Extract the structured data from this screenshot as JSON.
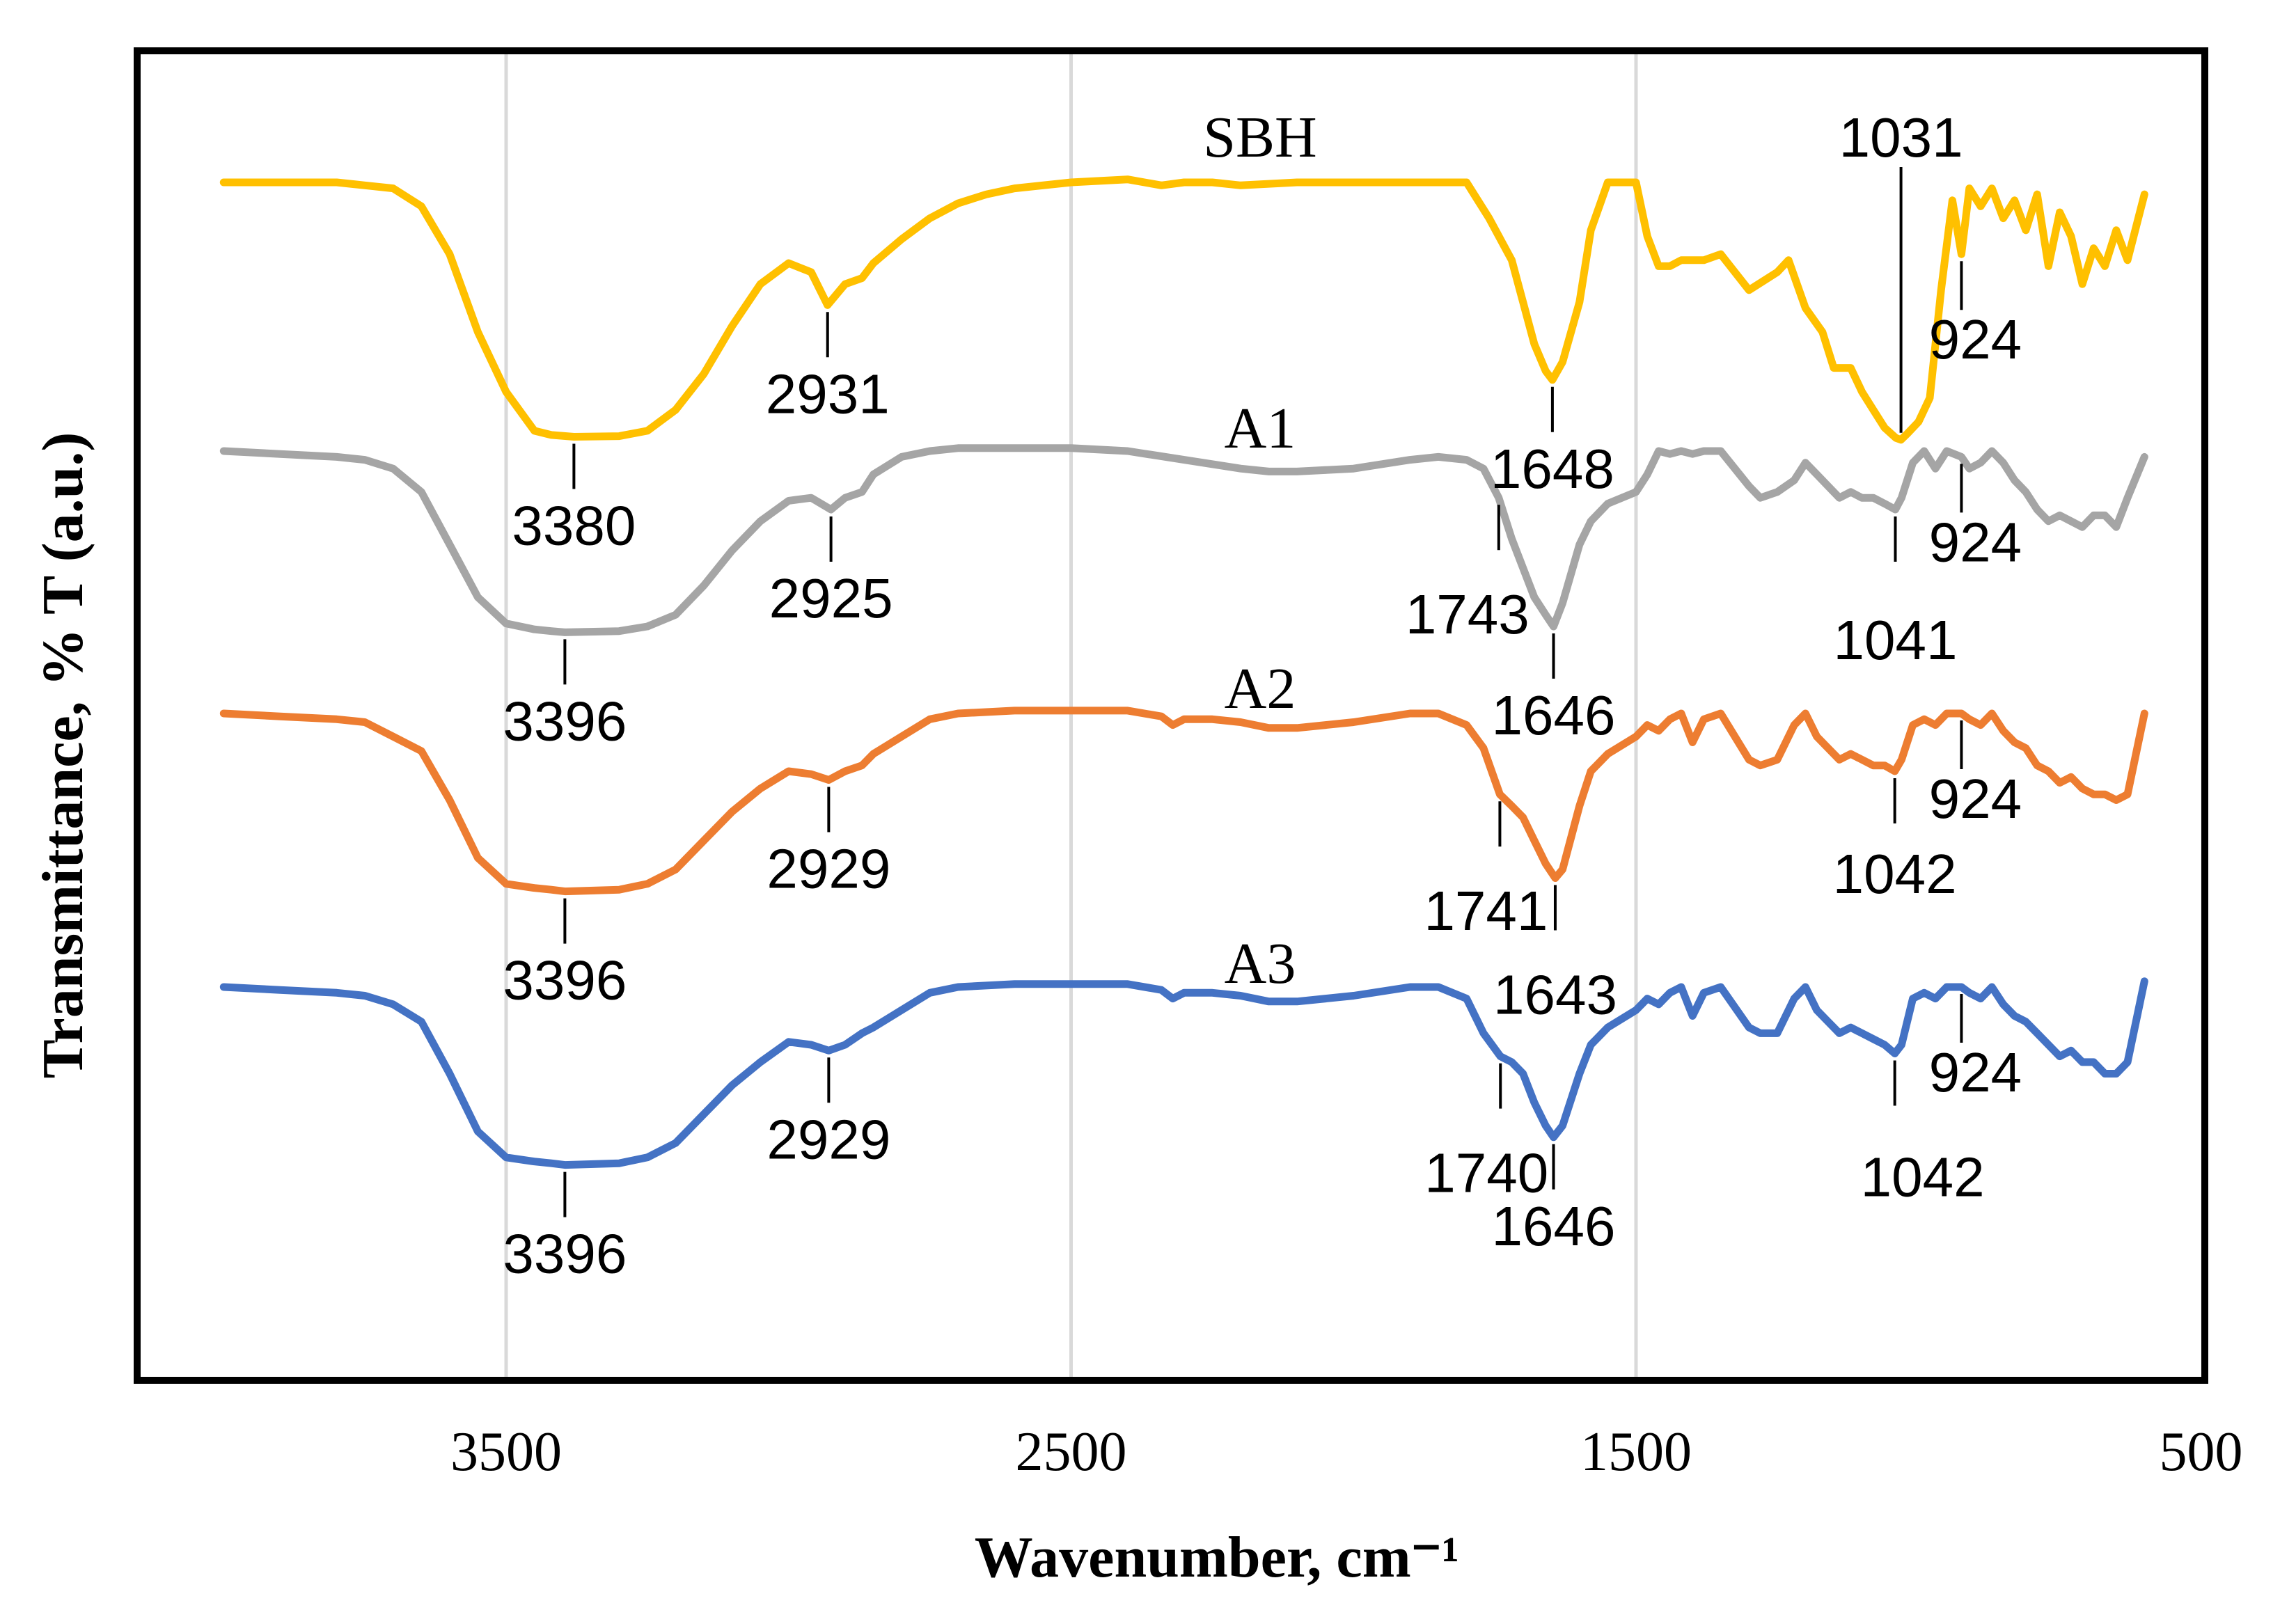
{
  "chart_data": {
    "type": "line",
    "xlabel": "Wavenumber, cm⁻¹",
    "ylabel": "Transmittance, % T (a.u.)",
    "xlim": [
      4150,
      500
    ],
    "x_direction": "reversed",
    "xticks": [
      3500,
      2500,
      1500,
      500
    ],
    "xtick_labels": [
      "3500",
      "2500",
      "1500",
      "500"
    ],
    "grid": "vertical",
    "legend": "none; series labels placed above each trace",
    "y_units": "arbitrary units, traces vertically offset",
    "series": [
      {
        "name": "SBH",
        "color": "#FFC000",
        "offset": 0,
        "x": [
          4000,
          3900,
          3800,
          3750,
          3700,
          3650,
          3600,
          3550,
          3500,
          3450,
          3420,
          3380,
          3300,
          3250,
          3200,
          3150,
          3100,
          3050,
          3000,
          2960,
          2931,
          2900,
          2870,
          2850,
          2800,
          2750,
          2700,
          2650,
          2600,
          2500,
          2400,
          2340,
          2300,
          2250,
          2200,
          2100,
          2000,
          1900,
          1800,
          1780,
          1760,
          1720,
          1700,
          1680,
          1660,
          1648,
          1630,
          1600,
          1580,
          1550,
          1500,
          1480,
          1460,
          1440,
          1420,
          1400,
          1380,
          1350,
          1300,
          1250,
          1230,
          1200,
          1170,
          1150,
          1120,
          1100,
          1080,
          1060,
          1040,
          1031,
          1020,
          1000,
          980,
          960,
          940,
          924,
          910,
          890,
          870,
          850,
          830,
          810,
          790,
          770,
          750,
          730,
          710,
          690,
          670,
          650,
          630,
          600
        ],
        "y": [
          88,
          88,
          88,
          87.5,
          87,
          84,
          76,
          63,
          53,
          46.5,
          45.8,
          45.5,
          45.6,
          46.5,
          50,
          56,
          64,
          71,
          74.5,
          73,
          67.5,
          71,
          72,
          74.5,
          78.5,
          82,
          84.5,
          86,
          87,
          88,
          88.5,
          87.5,
          88,
          88,
          87.5,
          88,
          88,
          88,
          88,
          85,
          82,
          75,
          68,
          61,
          56.5,
          55,
          58,
          68,
          80,
          88,
          88,
          79,
          74,
          74,
          75,
          75,
          75,
          76,
          70,
          73,
          75,
          67,
          63,
          57,
          57,
          53,
          50,
          47,
          45.3,
          45,
          46,
          48,
          52,
          70,
          85,
          76,
          87,
          84,
          87,
          82,
          85,
          80,
          86,
          74,
          83,
          79,
          71,
          77,
          74,
          80,
          75,
          86
        ]
      },
      {
        "name": "A1",
        "color": "#A5A5A5",
        "offset": 0,
        "x": [
          4000,
          3900,
          3800,
          3750,
          3700,
          3650,
          3600,
          3550,
          3500,
          3450,
          3420,
          3396,
          3300,
          3250,
          3200,
          3150,
          3100,
          3050,
          3000,
          2960,
          2925,
          2900,
          2870,
          2850,
          2800,
          2750,
          2700,
          2600,
          2500,
          2400,
          2300,
          2200,
          2150,
          2100,
          2000,
          1900,
          1850,
          1800,
          1770,
          1743,
          1720,
          1700,
          1680,
          1660,
          1646,
          1630,
          1600,
          1580,
          1550,
          1500,
          1480,
          1460,
          1440,
          1420,
          1400,
          1380,
          1350,
          1300,
          1280,
          1250,
          1220,
          1200,
          1180,
          1160,
          1140,
          1120,
          1100,
          1080,
          1060,
          1041,
          1030,
          1010,
          990,
          970,
          950,
          924,
          910,
          890,
          870,
          850,
          830,
          810,
          790,
          770,
          750,
          730,
          710,
          690,
          670,
          650,
          630,
          600
        ],
        "y": [
          88,
          87.5,
          87,
          86.5,
          85,
          81,
          72,
          63,
          58.5,
          57.5,
          57.2,
          57,
          57.2,
          58,
          60,
          65,
          71,
          76,
          79.5,
          80,
          78,
          80,
          81,
          84,
          87,
          88,
          88.5,
          88.5,
          88.5,
          88,
          86.5,
          85,
          84.5,
          84.5,
          85,
          86.5,
          87,
          86.5,
          85,
          80,
          73,
          68,
          63,
          60,
          58,
          62,
          72,
          76,
          79,
          81,
          84,
          88,
          87.5,
          88,
          87.5,
          88,
          88,
          82,
          80,
          81,
          83,
          86,
          84,
          82,
          80,
          81,
          80,
          80,
          79,
          78,
          80,
          86,
          88,
          85,
          88,
          87,
          85,
          86,
          88,
          86,
          83,
          81,
          78,
          76,
          77,
          76,
          75,
          77,
          77,
          75,
          80,
          87
        ]
      },
      {
        "name": "A2",
        "color": "#ED7D31",
        "offset": 0,
        "x": [
          4000,
          3900,
          3800,
          3750,
          3700,
          3650,
          3600,
          3550,
          3500,
          3450,
          3420,
          3396,
          3300,
          3250,
          3200,
          3150,
          3100,
          3050,
          3000,
          2960,
          2929,
          2900,
          2870,
          2850,
          2800,
          2750,
          2700,
          2600,
          2500,
          2400,
          2340,
          2320,
          2300,
          2250,
          2200,
          2150,
          2100,
          2000,
          1900,
          1850,
          1800,
          1770,
          1741,
          1720,
          1700,
          1680,
          1660,
          1643,
          1630,
          1600,
          1580,
          1550,
          1500,
          1480,
          1460,
          1440,
          1420,
          1400,
          1380,
          1350,
          1300,
          1280,
          1250,
          1220,
          1200,
          1180,
          1160,
          1140,
          1120,
          1100,
          1080,
          1060,
          1042,
          1030,
          1010,
          990,
          970,
          950,
          924,
          910,
          890,
          870,
          850,
          830,
          810,
          790,
          770,
          750,
          730,
          710,
          690,
          670,
          650,
          630,
          600
        ],
        "y": [
          88,
          87.5,
          87,
          86.5,
          84,
          81.5,
          73,
          63,
          58.5,
          57.8,
          57.5,
          57.2,
          57.5,
          58.5,
          61,
          66,
          71,
          75,
          78,
          77.5,
          76.5,
          78,
          79,
          81,
          84,
          87,
          88,
          88.5,
          88.5,
          88.5,
          87.5,
          86,
          87,
          87,
          86.5,
          85.5,
          85.5,
          86.5,
          88,
          88,
          86,
          82,
          74,
          72,
          70,
          66,
          62,
          59.5,
          61,
          72,
          78,
          81,
          84,
          86,
          85,
          87,
          88,
          83,
          87,
          88,
          80,
          79,
          80,
          86,
          88,
          84,
          82,
          80,
          81,
          80,
          79,
          79,
          78,
          80,
          86,
          87,
          86,
          88,
          88,
          87,
          86,
          88,
          85,
          83,
          82,
          79,
          78,
          76,
          77,
          75,
          74,
          74,
          73,
          74,
          88
        ]
      },
      {
        "name": "A3",
        "color": "#4472C4",
        "offset": 0,
        "x": [
          4000,
          3900,
          3800,
          3750,
          3700,
          3650,
          3600,
          3550,
          3500,
          3450,
          3420,
          3396,
          3300,
          3250,
          3200,
          3150,
          3100,
          3050,
          3000,
          2960,
          2929,
          2900,
          2870,
          2850,
          2800,
          2750,
          2700,
          2600,
          2500,
          2400,
          2340,
          2320,
          2300,
          2250,
          2200,
          2150,
          2100,
          2000,
          1900,
          1850,
          1800,
          1770,
          1740,
          1720,
          1700,
          1680,
          1660,
          1646,
          1630,
          1600,
          1580,
          1550,
          1500,
          1480,
          1460,
          1440,
          1420,
          1400,
          1380,
          1350,
          1300,
          1280,
          1250,
          1220,
          1200,
          1180,
          1160,
          1140,
          1120,
          1100,
          1080,
          1060,
          1042,
          1030,
          1010,
          990,
          970,
          950,
          924,
          910,
          890,
          870,
          850,
          830,
          810,
          790,
          770,
          750,
          730,
          710,
          690,
          670,
          650,
          630,
          600
        ],
        "y": [
          88,
          87.5,
          87,
          86.5,
          85,
          82,
          73,
          63,
          58.5,
          57.8,
          57.5,
          57.2,
          57.5,
          58.5,
          61,
          66,
          71,
          75,
          78.5,
          78,
          77,
          78,
          80,
          81,
          84,
          87,
          88,
          88.5,
          88.5,
          88.5,
          87.5,
          86,
          87,
          87,
          86.5,
          85.5,
          85.5,
          86.5,
          88,
          88,
          86,
          80,
          76,
          75,
          73,
          68,
          64,
          62,
          64,
          73,
          78,
          81,
          84,
          86,
          85,
          87,
          88,
          83,
          87,
          88,
          81,
          80,
          80,
          86,
          88,
          84,
          82,
          80,
          81,
          80,
          79,
          78,
          76.5,
          78,
          86,
          87,
          86,
          88,
          88,
          87,
          86,
          88,
          85,
          83,
          82,
          80,
          78,
          76,
          77,
          75,
          75,
          73,
          73,
          75,
          89
        ]
      }
    ],
    "peak_labels": [
      {
        "series": "SBH",
        "x": 3380,
        "label": "3380"
      },
      {
        "series": "SBH",
        "x": 2931,
        "label": "2931"
      },
      {
        "series": "SBH",
        "x": 1648,
        "label": "1648"
      },
      {
        "series": "SBH",
        "x": 1031,
        "label": "1031"
      },
      {
        "series": "SBH",
        "x": 924,
        "label": "924"
      },
      {
        "series": "A1",
        "x": 3396,
        "label": "3396"
      },
      {
        "series": "A1",
        "x": 2925,
        "label": "2925"
      },
      {
        "series": "A1",
        "x": 1743,
        "label": "1743"
      },
      {
        "series": "A1",
        "x": 1646,
        "label": "1646"
      },
      {
        "series": "A1",
        "x": 1041,
        "label": "1041"
      },
      {
        "series": "A1",
        "x": 924,
        "label": "924"
      },
      {
        "series": "A2",
        "x": 3396,
        "label": "3396"
      },
      {
        "series": "A2",
        "x": 2929,
        "label": "2929"
      },
      {
        "series": "A2",
        "x": 1741,
        "label": "1741"
      },
      {
        "series": "A2",
        "x": 1643,
        "label": "1643"
      },
      {
        "series": "A2",
        "x": 1042,
        "label": "1042"
      },
      {
        "series": "A2",
        "x": 924,
        "label": "924"
      },
      {
        "series": "A3",
        "x": 3396,
        "label": "3396"
      },
      {
        "series": "A3",
        "x": 2929,
        "label": "2929"
      },
      {
        "series": "A3",
        "x": 1740,
        "label": "1740"
      },
      {
        "series": "A3",
        "x": 1646,
        "label": "1646"
      },
      {
        "series": "A3",
        "x": 1042,
        "label": "1042"
      },
      {
        "series": "A3",
        "x": 924,
        "label": "924"
      }
    ]
  }
}
